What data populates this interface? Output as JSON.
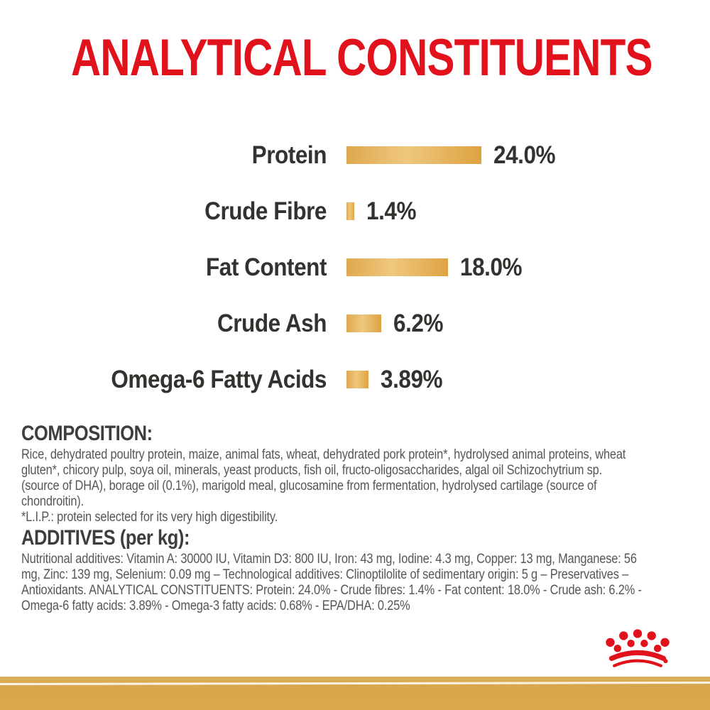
{
  "title": {
    "text": "ANALYTICAL CONSTITUENTS",
    "color": "#e2121c"
  },
  "chart_data": {
    "type": "bar",
    "orientation": "horizontal",
    "title": "ANALYTICAL CONSTITUENTS",
    "categories": [
      "Protein",
      "Crude Fibre",
      "Fat Content",
      "Crude Ash",
      "Omega-6 Fatty Acids"
    ],
    "values": [
      24.0,
      1.4,
      18.0,
      6.2,
      3.89
    ],
    "value_labels": [
      "24.0%",
      "1.4%",
      "18.0%",
      "6.2%",
      "3.89%"
    ],
    "xlabel": "",
    "ylabel": "",
    "xlim": [
      0,
      24
    ],
    "grid": false,
    "legend": false,
    "bar_color_left": "#dfa84e",
    "bar_color_mid": "#eec87e",
    "bar_color_right": "#dfa242",
    "label_color": "#32322f"
  },
  "composition": {
    "heading": "COMPOSITION:",
    "lines": [
      "Rice, dehydrated poultry protein, maize, animal fats, wheat, dehydrated pork protein*, hydrolysed animal proteins, wheat",
      "gluten*, chicory pulp, soya oil, minerals, yeast products, fish oil, fructo-oligosaccharides, algal oil Schizochytrium sp.",
      "(source of DHA), borage oil (0.1%), marigold meal, glucosamine from fermentation, hydrolysed cartilage (source of",
      "chondroitin).",
      "*L.I.P.: protein selected for its very high digestibility."
    ]
  },
  "additives": {
    "heading": "ADDITIVES (per kg):",
    "lines": [
      "Nutritional additives: Vitamin A: 30000 IU, Vitamin D3: 800 IU, Iron: 43 mg, Iodine: 4.3 mg, Copper: 13 mg, Manganese: 56",
      "mg, Zinc: 139 mg, Selenium: 0.09 mg – Technological additives: Clinoptilolite of sedimentary origin: 5 g – Preservatives –",
      "Antioxidants. ANALYTICAL CONSTITUENTS: Protein: 24.0% - Crude fibres: 1.4% - Fat content: 18.0% - Crude ash: 6.2% -",
      "Omega-6 fatty acids: 3.89% - Omega-3 fatty acids: 0.68% - EPA/DHA: 0.25%"
    ]
  },
  "footer": {
    "logo_icon": "royal-canin-crown-icon",
    "crown_color": "#e2121c",
    "bar_color": "#d8a54b"
  }
}
